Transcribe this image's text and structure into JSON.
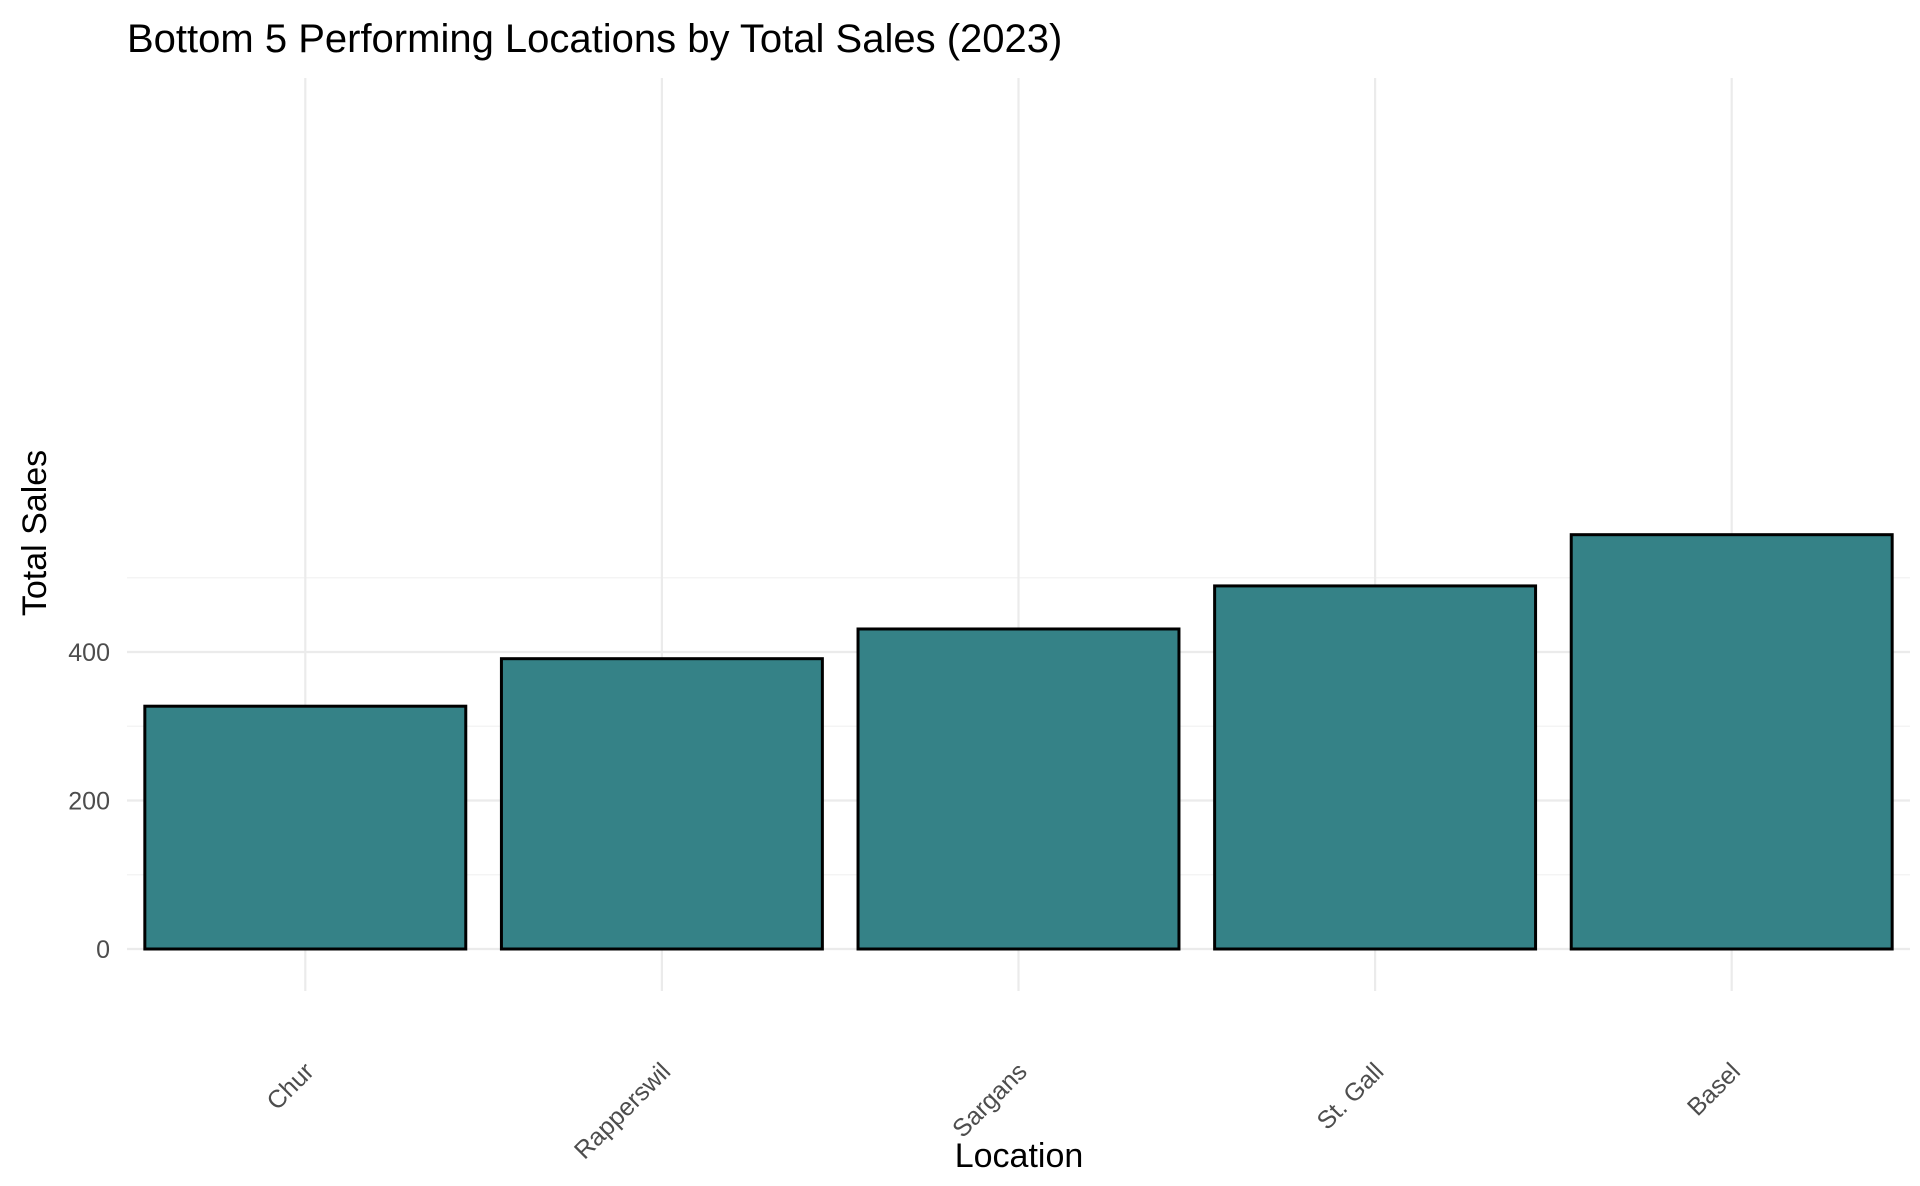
{
  "chart_data": {
    "type": "bar",
    "title": "Bottom 5 Performing Locations by Total Sales (2023)",
    "xlabel": "Location",
    "ylabel": "Total Sales",
    "categories": [
      "Chur",
      "Rapperswil",
      "Sargans",
      "St. Gall",
      "Basel"
    ],
    "values": [
      327,
      391,
      431,
      489,
      558
    ],
    "ylim": [
      -25,
      585
    ],
    "yticks": [
      0,
      200,
      400
    ],
    "ytick_labels": [
      "0",
      "200",
      "400"
    ],
    "minor_yticks": [
      100,
      300,
      500
    ],
    "grid": true,
    "legend": "none",
    "bar_color": "#358287"
  }
}
